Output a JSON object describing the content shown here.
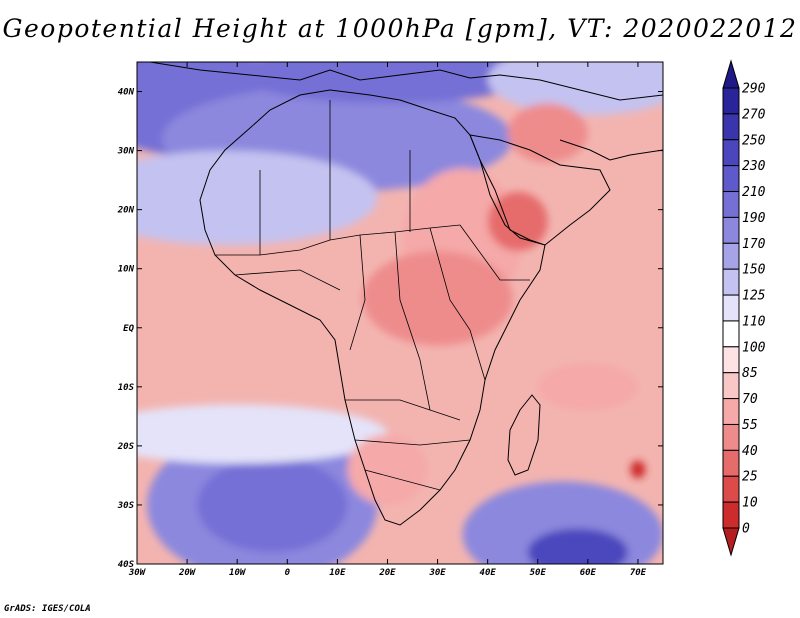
{
  "title": "Geopotential Height at 1000hPa [gpm], VT: 2020022012",
  "credit": "GrADS: IGES/COLA",
  "map": {
    "variable": "Geopotential Height",
    "level": "1000hPa",
    "units": "gpm",
    "valid_time": "2020022012",
    "region": "Africa",
    "lon_range": [
      -30,
      75
    ],
    "lat_range": [
      -40,
      45
    ]
  },
  "axes": {
    "y_ticks": [
      {
        "label": "40N",
        "lat": 40
      },
      {
        "label": "30N",
        "lat": 30
      },
      {
        "label": "20N",
        "lat": 20
      },
      {
        "label": "10N",
        "lat": 10
      },
      {
        "label": "EQ",
        "lat": 0
      },
      {
        "label": "10S",
        "lat": -10
      },
      {
        "label": "20S",
        "lat": -20
      },
      {
        "label": "30S",
        "lat": -30
      },
      {
        "label": "40S",
        "lat": -40
      }
    ],
    "x_ticks": [
      {
        "label": "30W",
        "lon": -30
      },
      {
        "label": "20W",
        "lon": -20
      },
      {
        "label": "10W",
        "lon": -10
      },
      {
        "label": "0",
        "lon": 0
      },
      {
        "label": "10E",
        "lon": 10
      },
      {
        "label": "20E",
        "lon": 20
      },
      {
        "label": "30E",
        "lon": 30
      },
      {
        "label": "40E",
        "lon": 40
      },
      {
        "label": "50E",
        "lon": 50
      },
      {
        "label": "60E",
        "lon": 60
      },
      {
        "label": "70E",
        "lon": 70
      }
    ]
  },
  "colorbar": {
    "labels": [
      "290",
      "270",
      "250",
      "230",
      "210",
      "190",
      "170",
      "150",
      "125",
      "110",
      "100",
      "85",
      "70",
      "55",
      "40",
      "25",
      "10",
      "0"
    ],
    "colors": [
      "#211887",
      "#2a249a",
      "#3a34ad",
      "#4b46bd",
      "#5f5acb",
      "#7570d5",
      "#8c88de",
      "#a6a3e7",
      "#c4c2f0",
      "#e4e3f9",
      "#ffffff",
      "#fde3e3",
      "#fac7c7",
      "#f5a9a9",
      "#ee8c8c",
      "#e66c6c",
      "#dc4a4a",
      "#cd2c2c",
      "#b51e1e"
    ]
  },
  "fields": {
    "bg": "#f3b4b0",
    "highs": [
      {
        "lon": -25,
        "lat": 43,
        "rx": 12,
        "ry": 6,
        "color": "#3a34ad"
      },
      {
        "lon": -18,
        "lat": 38,
        "rx": 22,
        "ry": 9,
        "color": "#7570d5"
      },
      {
        "lon": 10,
        "lat": 32,
        "rx": 35,
        "ry": 9,
        "color": "#8c88de"
      },
      {
        "lon": -12,
        "lat": 22,
        "rx": 30,
        "ry": 8,
        "color": "#c4c2f0"
      },
      {
        "lon": 20,
        "lat": 43,
        "rx": 30,
        "ry": 5,
        "color": "#7570d5"
      },
      {
        "lon": 60,
        "lat": 42,
        "rx": 20,
        "ry": 6,
        "color": "#c4c2f0"
      },
      {
        "lon": -5,
        "lat": -30,
        "rx": 23,
        "ry": 13,
        "color": "#8c88de"
      },
      {
        "lon": -3,
        "lat": -30,
        "rx": 15,
        "ry": 8,
        "color": "#7570d5"
      },
      {
        "lon": 55,
        "lat": -35,
        "rx": 20,
        "ry": 9,
        "color": "#8c88de"
      },
      {
        "lon": 58,
        "lat": -38,
        "rx": 10,
        "ry": 4,
        "color": "#4b46bd"
      },
      {
        "lon": -10,
        "lat": -18,
        "rx": 30,
        "ry": 5,
        "color": "#e4e3f9"
      }
    ],
    "lows": [
      {
        "lon": 35,
        "lat": 15,
        "rx": 12,
        "ry": 12,
        "color": "#f5a9a9"
      },
      {
        "lon": 30,
        "lat": 5,
        "rx": 15,
        "ry": 8,
        "color": "#ee8c8c"
      },
      {
        "lon": 46,
        "lat": 18,
        "rx": 6,
        "ry": 5,
        "color": "#e66c6c"
      },
      {
        "lon": 52,
        "lat": 33,
        "rx": 8,
        "ry": 5,
        "color": "#ee8c8c"
      },
      {
        "lon": 20,
        "lat": -24,
        "rx": 8,
        "ry": 6,
        "color": "#f5a9a9"
      },
      {
        "lon": 70,
        "lat": -24,
        "rx": 1.5,
        "ry": 1.5,
        "color": "#cd2c2c"
      },
      {
        "lon": 60,
        "lat": -10,
        "rx": 10,
        "ry": 4,
        "color": "#f5a9a9"
      }
    ]
  }
}
